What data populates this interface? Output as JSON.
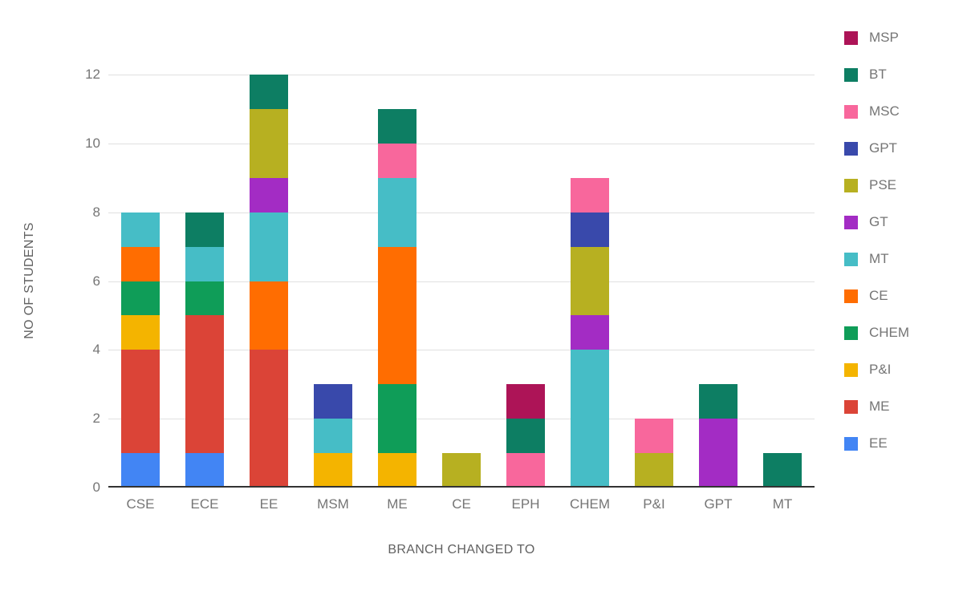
{
  "chart_data": {
    "type": "bar",
    "stacked": true,
    "title": "",
    "xlabel": "BRANCH CHANGED TO",
    "ylabel": "NO OF STUDENTS",
    "ylim": [
      0,
      12
    ],
    "yticks": [
      0,
      2,
      4,
      6,
      8,
      10,
      12
    ],
    "grid": true,
    "legend_position": "right",
    "categories": [
      "CSE",
      "ECE",
      "EE",
      "MSM",
      "ME",
      "CE",
      "EPH",
      "CHEM",
      "P&I",
      "GPT",
      "MT"
    ],
    "series": [
      {
        "name": "EE",
        "color": "#4285F4",
        "values": [
          1,
          1,
          0,
          0,
          0,
          0,
          0,
          0,
          0,
          0,
          0
        ]
      },
      {
        "name": "ME",
        "color": "#DB4437",
        "values": [
          3,
          4,
          4,
          0,
          0,
          0,
          0,
          0,
          0,
          0,
          0
        ]
      },
      {
        "name": "P&I",
        "color": "#F4B400",
        "values": [
          1,
          0,
          0,
          1,
          1,
          0,
          0,
          0,
          0,
          0,
          0
        ]
      },
      {
        "name": "CHEM",
        "color": "#0F9D58",
        "values": [
          1,
          1,
          0,
          0,
          2,
          0,
          0,
          0,
          0,
          0,
          0
        ]
      },
      {
        "name": "CE",
        "color": "#FF6D01",
        "values": [
          1,
          0,
          2,
          0,
          4,
          0,
          0,
          0,
          0,
          0,
          0
        ]
      },
      {
        "name": "MT",
        "color": "#46BDC6",
        "values": [
          1,
          1,
          2,
          1,
          2,
          0,
          0,
          4,
          0,
          0,
          0
        ]
      },
      {
        "name": "GT",
        "color": "#A32CC4",
        "values": [
          0,
          0,
          1,
          0,
          0,
          0,
          0,
          1,
          0,
          2,
          0
        ]
      },
      {
        "name": "PSE",
        "color": "#B7B021",
        "values": [
          0,
          0,
          2,
          0,
          0,
          1,
          0,
          2,
          1,
          0,
          0
        ]
      },
      {
        "name": "GPT",
        "color": "#3949AB",
        "values": [
          0,
          0,
          0,
          1,
          0,
          0,
          0,
          1,
          0,
          0,
          0
        ]
      },
      {
        "name": "MSC",
        "color": "#F8679C",
        "values": [
          0,
          0,
          0,
          0,
          1,
          0,
          1,
          1,
          1,
          0,
          0
        ]
      },
      {
        "name": "BT",
        "color": "#0D7E63",
        "values": [
          0,
          1,
          1,
          0,
          1,
          0,
          1,
          0,
          0,
          1,
          1
        ]
      },
      {
        "name": "MSP",
        "color": "#AD1457",
        "values": [
          0,
          0,
          0,
          0,
          0,
          0,
          1,
          0,
          0,
          0,
          0
        ]
      }
    ],
    "legend_order": [
      "MSP",
      "BT",
      "MSC",
      "GPT",
      "PSE",
      "GT",
      "MT",
      "CE",
      "CHEM",
      "P&I",
      "ME",
      "EE"
    ],
    "bar_totals": {
      "CSE": 8,
      "ECE": 8,
      "EE": 12,
      "MSM": 3,
      "ME": 11,
      "CE": 1,
      "EPH": 3,
      "CHEM": 9,
      "P&I": 2,
      "GPT": 3,
      "MT": 1
    },
    "theme": {
      "background": "#ffffff",
      "gridline_color": "#e0e0e0",
      "baseline_color": "#333333",
      "tick_label_color": "#757575",
      "axis_title_color": "#616161"
    }
  }
}
